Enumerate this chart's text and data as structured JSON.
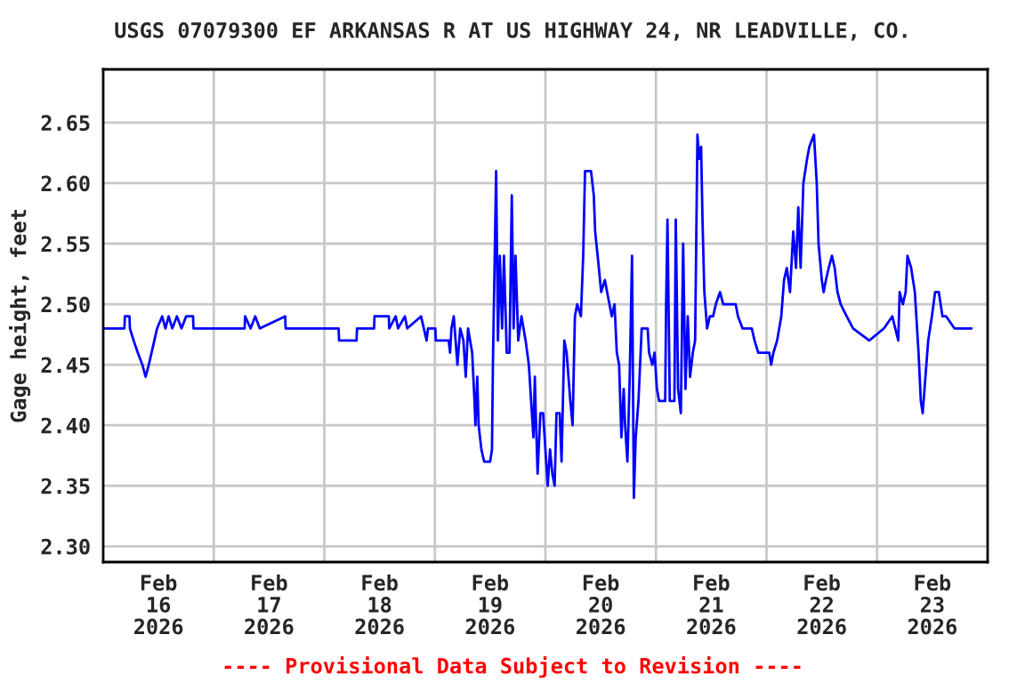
{
  "chart_data": {
    "type": "line",
    "title": "USGS 07079300 EF ARKANSAS R AT US HIGHWAY 24, NR LEADVILLE, CO.",
    "ylabel": "Gage height, feet",
    "annotations": [
      "---- Provisional Data Subject to Revision ----"
    ],
    "xlim": [
      "2026-02-16T00:00",
      "2026-02-24T00:00"
    ],
    "ylim": [
      2.287,
      2.694
    ],
    "xticks": [
      {
        "value": "2026-02-16T12:00",
        "label": "Feb\n16\n2026"
      },
      {
        "value": "2026-02-17T12:00",
        "label": "Feb\n17\n2026"
      },
      {
        "value": "2026-02-18T12:00",
        "label": "Feb\n18\n2026"
      },
      {
        "value": "2026-02-19T12:00",
        "label": "Feb\n19\n2026"
      },
      {
        "value": "2026-02-20T12:00",
        "label": "Feb\n20\n2026"
      },
      {
        "value": "2026-02-21T12:00",
        "label": "Feb\n21\n2026"
      },
      {
        "value": "2026-02-22T12:00",
        "label": "Feb\n22\n2026"
      },
      {
        "value": "2026-02-23T12:00",
        "label": "Feb\n23\n2026"
      },
      {
        "value": "2026-02-17T00:00",
        "label": null
      },
      {
        "value": "2026-02-18T00:00",
        "label": null
      },
      {
        "value": "2026-02-19T00:00",
        "label": null
      },
      {
        "value": "2026-02-20T00:00",
        "label": null
      },
      {
        "value": "2026-02-21T00:00",
        "label": null
      },
      {
        "value": "2026-02-22T00:00",
        "label": null
      },
      {
        "value": "2026-02-23T00:00",
        "label": null
      }
    ],
    "yticks": [
      {
        "value": 2.3,
        "label": "2.30"
      },
      {
        "value": 2.35,
        "label": "2.35"
      },
      {
        "value": 2.4,
        "label": "2.40"
      },
      {
        "value": 2.45,
        "label": "2.45"
      },
      {
        "value": 2.5,
        "label": "2.50"
      },
      {
        "value": 2.55,
        "label": "2.55"
      },
      {
        "value": 2.6,
        "label": "2.60"
      },
      {
        "value": 2.65,
        "label": "2.65"
      }
    ],
    "grid": true,
    "series": [
      {
        "color": "#0000ff",
        "x": [
          "2026-02-16T00:00",
          "2026-02-16T04:36",
          "2026-02-16T04:42",
          "2026-02-16T05:42",
          "2026-02-16T05:48",
          "2026-02-16T06:36",
          "2026-02-16T07:30",
          "2026-02-16T08:30",
          "2026-02-16T09:12",
          "2026-02-16T09:54",
          "2026-02-16T11:06",
          "2026-02-16T11:42",
          "2026-02-16T12:48",
          "2026-02-16T13:30",
          "2026-02-16T14:12",
          "2026-02-16T15:00",
          "2026-02-16T16:00",
          "2026-02-16T17:00",
          "2026-02-16T18:00",
          "2026-02-16T19:30",
          "2026-02-16T19:36",
          "2026-02-17T06:42",
          "2026-02-17T06:48",
          "2026-02-17T08:00",
          "2026-02-17T09:00",
          "2026-02-17T10:00",
          "2026-02-17T15:30",
          "2026-02-17T15:36",
          "2026-02-18T03:06",
          "2026-02-18T03:12",
          "2026-02-18T07:00",
          "2026-02-18T07:06",
          "2026-02-18T10:48",
          "2026-02-18T10:54",
          "2026-02-18T14:00",
          "2026-02-18T14:06",
          "2026-02-18T15:30",
          "2026-02-18T16:00",
          "2026-02-18T17:30",
          "2026-02-18T18:00",
          "2026-02-18T21:00",
          "2026-02-18T22:12",
          "2026-02-18T22:30",
          "2026-02-19T00:06",
          "2026-02-19T00:12",
          "2026-02-19T03:00",
          "2026-02-19T03:18",
          "2026-02-19T03:36",
          "2026-02-19T04:06",
          "2026-02-19T04:30",
          "2026-02-19T04:54",
          "2026-02-19T05:30",
          "2026-02-19T06:12",
          "2026-02-19T06:42",
          "2026-02-19T07:12",
          "2026-02-19T08:06",
          "2026-02-19T08:36",
          "2026-02-19T08:48",
          "2026-02-19T09:12",
          "2026-02-19T09:30",
          "2026-02-19T10:06",
          "2026-02-19T10:42",
          "2026-02-19T12:00",
          "2026-02-19T12:24",
          "2026-02-19T12:36",
          "2026-02-19T13:18",
          "2026-02-19T13:42",
          "2026-02-19T14:06",
          "2026-02-19T14:36",
          "2026-02-19T15:00",
          "2026-02-19T15:36",
          "2026-02-19T16:12",
          "2026-02-19T16:42",
          "2026-02-19T17:06",
          "2026-02-19T17:30",
          "2026-02-19T18:06",
          "2026-02-19T18:48",
          "2026-02-19T19:42",
          "2026-02-19T20:24",
          "2026-02-19T21:24",
          "2026-02-19T21:42",
          "2026-02-19T21:54",
          "2026-02-19T22:18",
          "2026-02-19T22:54",
          "2026-02-19T23:30",
          "2026-02-20T00:00",
          "2026-02-20T00:30",
          "2026-02-20T01:00",
          "2026-02-20T01:30",
          "2026-02-20T02:00",
          "2026-02-20T02:24",
          "2026-02-20T03:06",
          "2026-02-20T03:30",
          "2026-02-20T04:06",
          "2026-02-20T04:36",
          "2026-02-20T05:24",
          "2026-02-20T05:54",
          "2026-02-20T06:24",
          "2026-02-20T06:54",
          "2026-02-20T07:42",
          "2026-02-20T08:12",
          "2026-02-20T08:36",
          "2026-02-20T09:54",
          "2026-02-20T10:30",
          "2026-02-20T10:48",
          "2026-02-20T11:36",
          "2026-02-20T12:06",
          "2026-02-20T12:54",
          "2026-02-20T13:24",
          "2026-02-20T13:54",
          "2026-02-20T14:24",
          "2026-02-20T15:00",
          "2026-02-20T15:30",
          "2026-02-20T16:00",
          "2026-02-20T16:30",
          "2026-02-20T17:00",
          "2026-02-20T17:18",
          "2026-02-20T17:48",
          "2026-02-20T18:18",
          "2026-02-20T18:48",
          "2026-02-20T19:12",
          "2026-02-20T19:36",
          "2026-02-20T20:12",
          "2026-02-20T20:54",
          "2026-02-20T22:12",
          "2026-02-20T22:30",
          "2026-02-20T23:12",
          "2026-02-20T23:42",
          "2026-02-21T00:12",
          "2026-02-21T00:42",
          "2026-02-21T02:00",
          "2026-02-21T02:12",
          "2026-02-21T02:30",
          "2026-02-21T03:00",
          "2026-02-21T04:00",
          "2026-02-21T04:18",
          "2026-02-21T04:48",
          "2026-02-21T05:24",
          "2026-02-21T05:54",
          "2026-02-21T06:24",
          "2026-02-21T06:54",
          "2026-02-21T07:24",
          "2026-02-21T08:00",
          "2026-02-21T08:30",
          "2026-02-21T09:00",
          "2026-02-21T09:24",
          "2026-02-21T09:48",
          "2026-02-21T10:06",
          "2026-02-21T10:30",
          "2026-02-21T11:06",
          "2026-02-21T11:42",
          "2026-02-21T12:24",
          "2026-02-21T13:00",
          "2026-02-21T13:54",
          "2026-02-21T14:36",
          "2026-02-21T15:12",
          "2026-02-21T17:18",
          "2026-02-21T17:48",
          "2026-02-21T18:48",
          "2026-02-21T20:48",
          "2026-02-21T21:24",
          "2026-02-21T22:12",
          "2026-02-22T00:36",
          "2026-02-22T01:00",
          "2026-02-22T01:30",
          "2026-02-22T02:18",
          "2026-02-22T03:12",
          "2026-02-22T03:48",
          "2026-02-22T04:24",
          "2026-02-22T05:06",
          "2026-02-22T05:48",
          "2026-02-22T06:24",
          "2026-02-22T06:54",
          "2026-02-22T07:24",
          "2026-02-22T08:00",
          "2026-02-22T08:48",
          "2026-02-22T09:18",
          "2026-02-22T10:18",
          "2026-02-22T10:54",
          "2026-02-22T11:18",
          "2026-02-22T12:00",
          "2026-02-22T12:24",
          "2026-02-22T12:54",
          "2026-02-22T13:30",
          "2026-02-22T14:12",
          "2026-02-22T14:48",
          "2026-02-22T15:24",
          "2026-02-22T16:06",
          "2026-02-22T17:24",
          "2026-02-22T18:48",
          "2026-02-22T22:18",
          "2026-02-23T01:30",
          "2026-02-23T03:18",
          "2026-02-23T04:36",
          "2026-02-23T04:54",
          "2026-02-23T05:36",
          "2026-02-23T06:12",
          "2026-02-23T06:36",
          "2026-02-23T07:24",
          "2026-02-23T08:12",
          "2026-02-23T09:00",
          "2026-02-23T09:30",
          "2026-02-23T09:54",
          "2026-02-23T10:30",
          "2026-02-23T11:06",
          "2026-02-23T11:54",
          "2026-02-23T12:36",
          "2026-02-23T13:24",
          "2026-02-23T14:12",
          "2026-02-23T15:00",
          "2026-02-23T16:48",
          "2026-02-23T20:30"
        ],
        "values": [
          2.48,
          2.48,
          2.49,
          2.49,
          2.48,
          2.47,
          2.46,
          2.45,
          2.44,
          2.45,
          2.47,
          2.48,
          2.49,
          2.48,
          2.49,
          2.48,
          2.49,
          2.48,
          2.49,
          2.49,
          2.48,
          2.48,
          2.49,
          2.48,
          2.49,
          2.48,
          2.49,
          2.48,
          2.48,
          2.47,
          2.47,
          2.48,
          2.48,
          2.49,
          2.49,
          2.48,
          2.49,
          2.48,
          2.49,
          2.48,
          2.49,
          2.47,
          2.48,
          2.48,
          2.47,
          2.47,
          2.46,
          2.48,
          2.49,
          2.47,
          2.45,
          2.48,
          2.47,
          2.44,
          2.48,
          2.46,
          2.42,
          2.4,
          2.44,
          2.4,
          2.38,
          2.37,
          2.37,
          2.38,
          2.45,
          2.61,
          2.47,
          2.54,
          2.48,
          2.54,
          2.46,
          2.46,
          2.59,
          2.48,
          2.54,
          2.47,
          2.49,
          2.47,
          2.45,
          2.39,
          2.44,
          2.41,
          2.36,
          2.41,
          2.41,
          2.38,
          2.35,
          2.38,
          2.36,
          2.35,
          2.41,
          2.41,
          2.37,
          2.47,
          2.46,
          2.42,
          2.4,
          2.49,
          2.5,
          2.49,
          2.54,
          2.61,
          2.61,
          2.59,
          2.56,
          2.53,
          2.51,
          2.52,
          2.51,
          2.5,
          2.49,
          2.5,
          2.46,
          2.45,
          2.39,
          2.43,
          2.4,
          2.37,
          2.44,
          2.54,
          2.34,
          2.39,
          2.42,
          2.48,
          2.48,
          2.46,
          2.45,
          2.46,
          2.43,
          2.42,
          2.42,
          2.5,
          2.57,
          2.42,
          2.42,
          2.57,
          2.43,
          2.41,
          2.55,
          2.43,
          2.49,
          2.44,
          2.46,
          2.47,
          2.64,
          2.62,
          2.63,
          2.57,
          2.51,
          2.48,
          2.49,
          2.49,
          2.5,
          2.51,
          2.5,
          2.5,
          2.5,
          2.49,
          2.48,
          2.48,
          2.47,
          2.46,
          2.46,
          2.45,
          2.46,
          2.47,
          2.49,
          2.52,
          2.53,
          2.51,
          2.56,
          2.53,
          2.58,
          2.53,
          2.6,
          2.62,
          2.63,
          2.64,
          2.6,
          2.55,
          2.52,
          2.51,
          2.52,
          2.53,
          2.54,
          2.53,
          2.51,
          2.5,
          2.49,
          2.48,
          2.47,
          2.48,
          2.49,
          2.47,
          2.51,
          2.5,
          2.51,
          2.54,
          2.53,
          2.51,
          2.46,
          2.42,
          2.41,
          2.44,
          2.47,
          2.49,
          2.51,
          2.51,
          2.49,
          2.49,
          2.48,
          2.48
        ]
      }
    ]
  }
}
